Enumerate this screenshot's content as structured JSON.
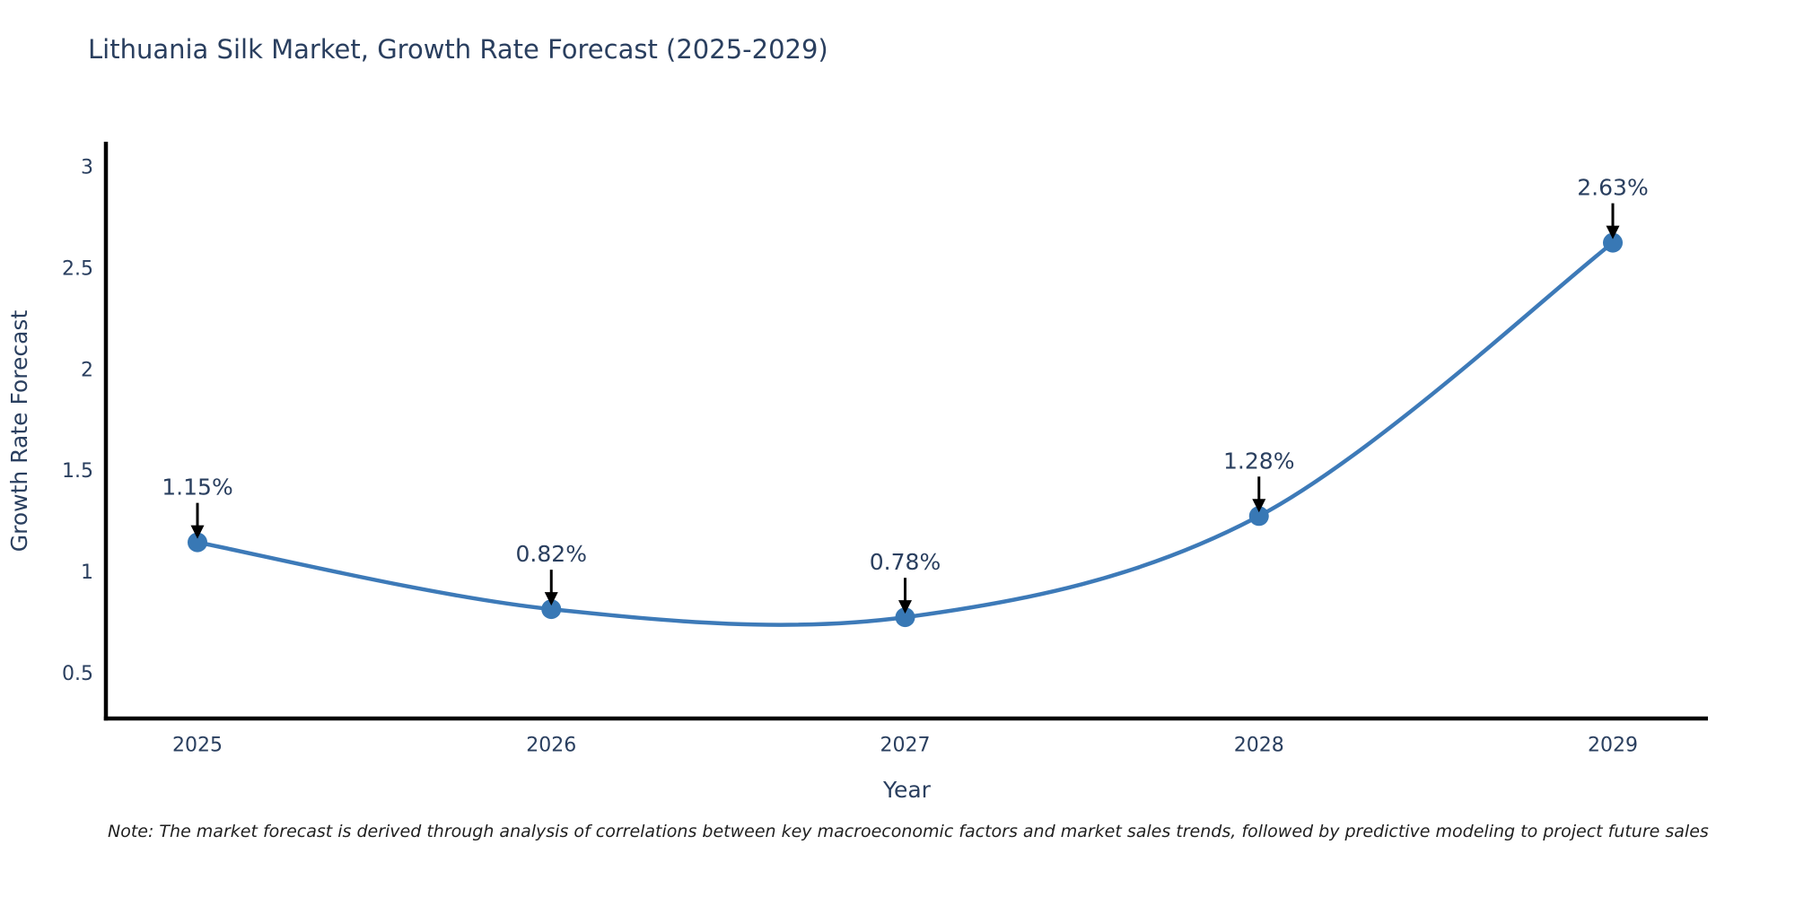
{
  "title": "Lithuania Silk Market, Growth Rate Forecast (2025-2029)",
  "note": "Note: The market forecast is derived through analysis of correlations between key macroeconomic factors and market sales trends, followed by predictive modeling to project future sales",
  "chart_data": {
    "type": "line",
    "title": "Lithuania Silk Market, Growth Rate Forecast (2025-2029)",
    "line_shape": "spline",
    "grid": false,
    "legend_position": "none",
    "x": [
      2025,
      2026,
      2027,
      2028,
      2029
    ],
    "xticks": [
      "2025",
      "2026",
      "2027",
      "2028",
      "2029"
    ],
    "series": [
      {
        "name": "Growth Rate Forecast",
        "values": [
          1.15,
          0.82,
          0.78,
          1.28,
          2.63
        ]
      }
    ],
    "point_labels": [
      "1.15%",
      "0.82%",
      "0.78%",
      "1.28%",
      "2.63%"
    ],
    "xlabel": "Year",
    "ylabel": "Growth Rate Forecast",
    "ytick_values": [
      0.5,
      1,
      1.5,
      2,
      2.5,
      3
    ],
    "ytick_labels": [
      "0.5",
      "1",
      "1.5",
      "2",
      "2.5",
      "3"
    ],
    "ylim": [
      0.28,
      3.12
    ],
    "colors": {
      "line": "#3d7ab8",
      "marker": "#3878b5",
      "axis": "#000000",
      "tick_text": "#2a3f5f",
      "annotation_text": "#2a3f5f",
      "annotation_arrow": "#000000",
      "title_text": "#2a3f5f"
    }
  }
}
